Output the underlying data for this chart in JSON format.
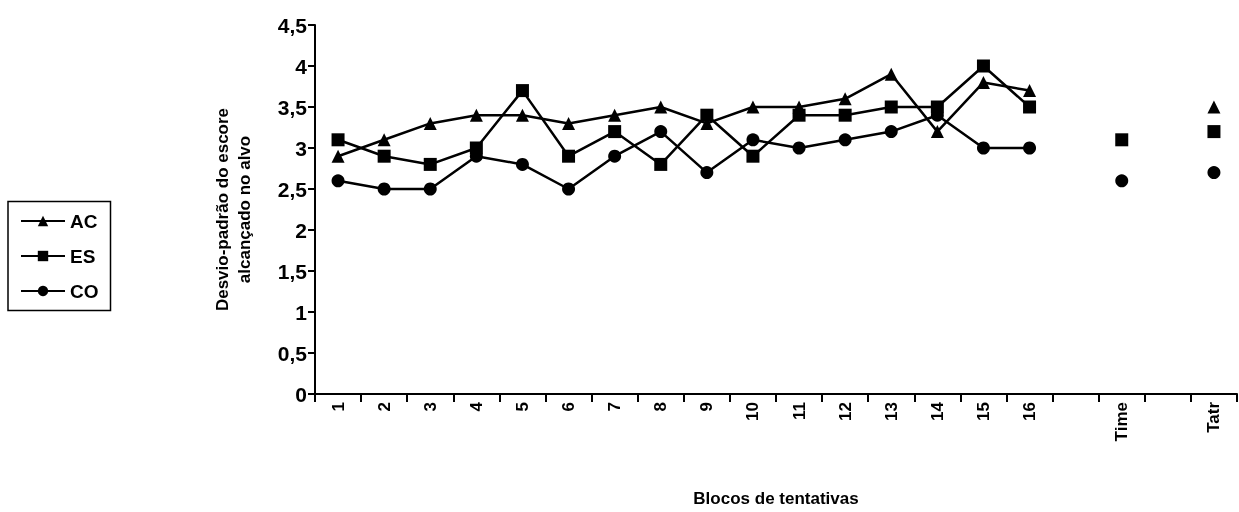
{
  "chart_data": {
    "type": "line",
    "xlabel": "Blocos de tentativas",
    "ylabel": "Desvio-padrão do escore\nalcançado no alvo",
    "categories": [
      "1",
      "2",
      "3",
      "4",
      "5",
      "6",
      "7",
      "8",
      "9",
      "10",
      "11",
      "12",
      "13",
      "14",
      "15",
      "16",
      null,
      "Time",
      null,
      "Tatr"
    ],
    "series": [
      {
        "name": "AC",
        "color": "#000000",
        "marker": "triangle",
        "values": [
          2.9,
          3.1,
          3.3,
          3.4,
          3.4,
          3.3,
          3.4,
          3.5,
          3.3,
          3.5,
          3.5,
          3.6,
          3.9,
          3.2,
          3.8,
          3.7,
          null,
          null,
          null,
          3.5
        ]
      },
      {
        "name": "ES",
        "color": "#000000",
        "marker": "square",
        "values": [
          3.1,
          2.9,
          2.8,
          3.0,
          3.7,
          2.9,
          3.2,
          2.8,
          3.4,
          2.9,
          3.4,
          3.4,
          3.5,
          3.5,
          4.0,
          3.5,
          null,
          3.1,
          null,
          3.2
        ]
      },
      {
        "name": "CO",
        "color": "#000000",
        "marker": "circle",
        "values": [
          2.6,
          2.5,
          2.5,
          2.9,
          2.8,
          2.5,
          2.9,
          3.2,
          2.7,
          3.1,
          3.0,
          3.1,
          3.2,
          3.4,
          3.0,
          3.0,
          null,
          2.6,
          null,
          2.7
        ]
      }
    ],
    "ylim": [
      0,
      4.5
    ],
    "yticks": [
      {
        "value": 0,
        "label": "0"
      },
      {
        "value": 0.5,
        "label": "0,5"
      },
      {
        "value": 1,
        "label": "1"
      },
      {
        "value": 1.5,
        "label": "1,5"
      },
      {
        "value": 2,
        "label": "2"
      },
      {
        "value": 2.5,
        "label": "2,5"
      },
      {
        "value": 3,
        "label": "3"
      },
      {
        "value": 3.5,
        "label": "3,5"
      },
      {
        "value": 4,
        "label": "4"
      },
      {
        "value": 4.5,
        "label": "4,5"
      }
    ],
    "grid": false,
    "legend": "left",
    "line_style": "solid"
  }
}
